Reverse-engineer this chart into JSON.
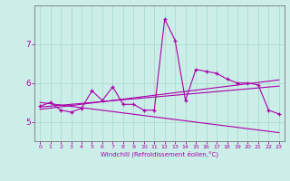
{
  "xlabel": "Windchill (Refroidissement éolien,°C)",
  "background_color": "#cceee8",
  "line_color": "#aa00aa",
  "grid_color": "#aaddcc",
  "x_ticks": [
    0,
    1,
    2,
    3,
    4,
    5,
    6,
    7,
    8,
    9,
    10,
    11,
    12,
    13,
    14,
    15,
    16,
    17,
    18,
    19,
    20,
    21,
    22,
    23
  ],
  "y_ticks": [
    5,
    6,
    7
  ],
  "ylim": [
    4.5,
    8.0
  ],
  "xlim": [
    -0.5,
    23.5
  ],
  "series1": [
    5.4,
    5.5,
    5.3,
    5.25,
    5.35,
    5.8,
    5.55,
    5.9,
    5.45,
    5.45,
    5.3,
    5.3,
    7.65,
    7.1,
    5.55,
    6.35,
    6.3,
    6.25,
    6.1,
    6.0,
    6.0,
    5.95,
    5.3,
    5.2
  ],
  "series2_x": [
    0,
    23
  ],
  "series2_y": [
    5.38,
    5.92
  ],
  "series3_x": [
    0,
    23
  ],
  "series3_y": [
    5.5,
    4.72
  ],
  "series4_x": [
    0,
    23
  ],
  "series4_y": [
    5.32,
    6.08
  ]
}
